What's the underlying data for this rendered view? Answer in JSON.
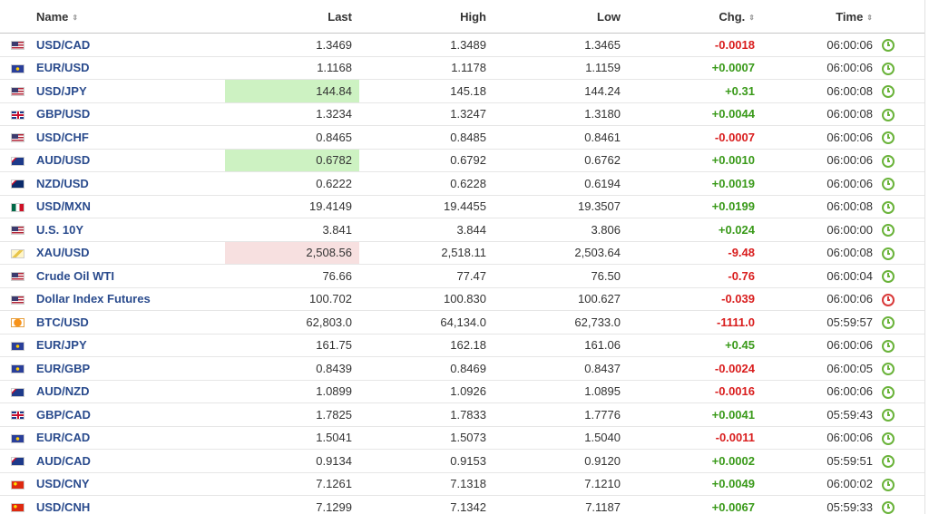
{
  "headers": {
    "name": "Name",
    "last": "Last",
    "high": "High",
    "low": "Low",
    "chg": "Chg.",
    "time": "Time",
    "sort_glyph": "⇕"
  },
  "rows": [
    {
      "flag": "us-flag",
      "name": "USD/CAD",
      "last": "1.3469",
      "high": "1.3489",
      "low": "1.3465",
      "chg": "-0.0018",
      "dir": "neg",
      "time": "06:00:06",
      "status": "green",
      "flash": ""
    },
    {
      "flag": "eu-flag",
      "name": "EUR/USD",
      "last": "1.1168",
      "high": "1.1178",
      "low": "1.1159",
      "chg": "+0.0007",
      "dir": "pos",
      "time": "06:00:06",
      "status": "green",
      "flash": ""
    },
    {
      "flag": "us-flag",
      "name": "USD/JPY",
      "last": "144.84",
      "high": "145.18",
      "low": "144.24",
      "chg": "+0.31",
      "dir": "pos",
      "time": "06:00:08",
      "status": "green",
      "flash": "up"
    },
    {
      "flag": "gb-flag",
      "name": "GBP/USD",
      "last": "1.3234",
      "high": "1.3247",
      "low": "1.3180",
      "chg": "+0.0044",
      "dir": "pos",
      "time": "06:00:08",
      "status": "green",
      "flash": ""
    },
    {
      "flag": "us-flag",
      "name": "USD/CHF",
      "last": "0.8465",
      "high": "0.8485",
      "low": "0.8461",
      "chg": "-0.0007",
      "dir": "neg",
      "time": "06:00:06",
      "status": "green",
      "flash": ""
    },
    {
      "flag": "au-flag",
      "name": "AUD/USD",
      "last": "0.6782",
      "high": "0.6792",
      "low": "0.6762",
      "chg": "+0.0010",
      "dir": "pos",
      "time": "06:00:06",
      "status": "green",
      "flash": "up"
    },
    {
      "flag": "nz-flag",
      "name": "NZD/USD",
      "last": "0.6222",
      "high": "0.6228",
      "low": "0.6194",
      "chg": "+0.0019",
      "dir": "pos",
      "time": "06:00:06",
      "status": "green",
      "flash": ""
    },
    {
      "flag": "mx-flag",
      "name": "USD/MXN",
      "last": "19.4149",
      "high": "19.4455",
      "low": "19.3507",
      "chg": "+0.0199",
      "dir": "pos",
      "time": "06:00:08",
      "status": "green",
      "flash": ""
    },
    {
      "flag": "us-flag",
      "name": "U.S. 10Y",
      "last": "3.841",
      "high": "3.844",
      "low": "3.806",
      "chg": "+0.024",
      "dir": "pos",
      "time": "06:00:00",
      "status": "green",
      "flash": ""
    },
    {
      "flag": "gold-icon",
      "name": "XAU/USD",
      "last": "2,508.56",
      "high": "2,518.11",
      "low": "2,503.64",
      "chg": "-9.48",
      "dir": "neg",
      "time": "06:00:08",
      "status": "green",
      "flash": "down"
    },
    {
      "flag": "us-flag",
      "name": "Crude Oil WTI",
      "last": "76.66",
      "high": "77.47",
      "low": "76.50",
      "chg": "-0.76",
      "dir": "neg",
      "time": "06:00:04",
      "status": "green",
      "flash": ""
    },
    {
      "flag": "us-flag",
      "name": "Dollar Index Futures",
      "last": "100.702",
      "high": "100.830",
      "low": "100.627",
      "chg": "-0.039",
      "dir": "neg",
      "time": "06:00:06",
      "status": "red",
      "flash": ""
    },
    {
      "flag": "btc-icon",
      "name": "BTC/USD",
      "last": "62,803.0",
      "high": "64,134.0",
      "low": "62,733.0",
      "chg": "-1111.0",
      "dir": "neg",
      "time": "05:59:57",
      "status": "green",
      "flash": ""
    },
    {
      "flag": "eu-flag",
      "name": "EUR/JPY",
      "last": "161.75",
      "high": "162.18",
      "low": "161.06",
      "chg": "+0.45",
      "dir": "pos",
      "time": "06:00:06",
      "status": "green",
      "flash": ""
    },
    {
      "flag": "eu-flag",
      "name": "EUR/GBP",
      "last": "0.8439",
      "high": "0.8469",
      "low": "0.8437",
      "chg": "-0.0024",
      "dir": "neg",
      "time": "06:00:05",
      "status": "green",
      "flash": ""
    },
    {
      "flag": "au-flag",
      "name": "AUD/NZD",
      "last": "1.0899",
      "high": "1.0926",
      "low": "1.0895",
      "chg": "-0.0016",
      "dir": "neg",
      "time": "06:00:06",
      "status": "green",
      "flash": ""
    },
    {
      "flag": "gb-flag",
      "name": "GBP/CAD",
      "last": "1.7825",
      "high": "1.7833",
      "low": "1.7776",
      "chg": "+0.0041",
      "dir": "pos",
      "time": "05:59:43",
      "status": "green",
      "flash": ""
    },
    {
      "flag": "eu-flag",
      "name": "EUR/CAD",
      "last": "1.5041",
      "high": "1.5073",
      "low": "1.5040",
      "chg": "-0.0011",
      "dir": "neg",
      "time": "06:00:06",
      "status": "green",
      "flash": ""
    },
    {
      "flag": "au-flag",
      "name": "AUD/CAD",
      "last": "0.9134",
      "high": "0.9153",
      "low": "0.9120",
      "chg": "+0.0002",
      "dir": "pos",
      "time": "05:59:51",
      "status": "green",
      "flash": ""
    },
    {
      "flag": "cn-flag",
      "name": "USD/CNY",
      "last": "7.1261",
      "high": "7.1318",
      "low": "7.1210",
      "chg": "+0.0049",
      "dir": "pos",
      "time": "06:00:02",
      "status": "green",
      "flash": ""
    },
    {
      "flag": "cn-flag",
      "name": "USD/CNH",
      "last": "7.1299",
      "high": "7.1342",
      "low": "7.1187",
      "chg": "+0.0067",
      "dir": "pos",
      "time": "05:59:33",
      "status": "green",
      "flash": ""
    }
  ],
  "colors": {
    "positive": "#3a9a1a",
    "negative": "#d91e1e",
    "link": "#2a4b8d",
    "flash_up": "#cdf2c2",
    "flash_down": "#f7e0e0"
  }
}
